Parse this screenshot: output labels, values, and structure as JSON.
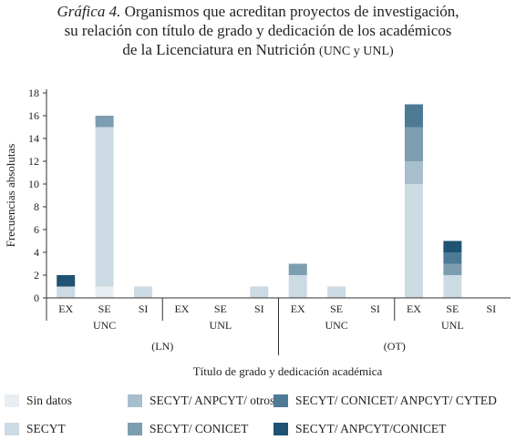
{
  "title": {
    "label": "Gráfica 4.",
    "line1": "Organismos que acreditan proyectos de investigación,",
    "line2": "su relación con título de grado y dedicación de los académicos",
    "line3": "de la Licenciatura en Nutrición",
    "line3_small": "(UNC y UNL)"
  },
  "chart_data": {
    "type": "bar",
    "stacked": true,
    "ylabel": "Frecuencias absolutas",
    "xlabel": "Título de grado y dedicación académica",
    "ylim": [
      0,
      18
    ],
    "yticks": [
      0,
      2,
      4,
      6,
      8,
      10,
      12,
      14,
      16,
      18
    ],
    "grid": false,
    "legend_position": "bottom",
    "categories": [
      "EX",
      "SE",
      "SI",
      "EX",
      "SE",
      "SI",
      "EX",
      "SE",
      "SI",
      "EX",
      "SE",
      "SI"
    ],
    "group_labels": [
      "UNC",
      "UNL",
      "UNC",
      "UNL"
    ],
    "super_group_labels": [
      "(LN)",
      "(OT)"
    ],
    "series": [
      {
        "name": "Sin datos",
        "color": "#e8eef2",
        "values": [
          0,
          1,
          0,
          0,
          0,
          0,
          0,
          0,
          0,
          0,
          0,
          0
        ]
      },
      {
        "name": "SECYT",
        "color": "#ccdae3",
        "values": [
          1,
          14,
          1,
          0,
          0,
          1,
          2,
          1,
          0,
          10,
          2,
          0
        ]
      },
      {
        "name": "SECYT/ ANPCYT/ otros",
        "color": "#a7bfcd",
        "values": [
          0,
          0,
          0,
          0,
          0,
          0,
          0,
          0,
          0,
          2,
          0,
          0
        ]
      },
      {
        "name": "SECYT/ CONICET",
        "color": "#7d9db0",
        "values": [
          0,
          1,
          0,
          0,
          0,
          0,
          1,
          0,
          0,
          3,
          1,
          0
        ]
      },
      {
        "name": "SECYT/ CONICET/ ANPCYT/ CYTED",
        "color": "#4d7a95",
        "values": [
          0,
          0,
          0,
          0,
          0,
          0,
          0,
          0,
          0,
          2,
          1,
          0
        ]
      },
      {
        "name": "SECYT/ ANPCYT/CONICET",
        "color": "#1f5273",
        "values": [
          1,
          0,
          0,
          0,
          0,
          0,
          0,
          0,
          0,
          0,
          1,
          0
        ]
      }
    ]
  }
}
